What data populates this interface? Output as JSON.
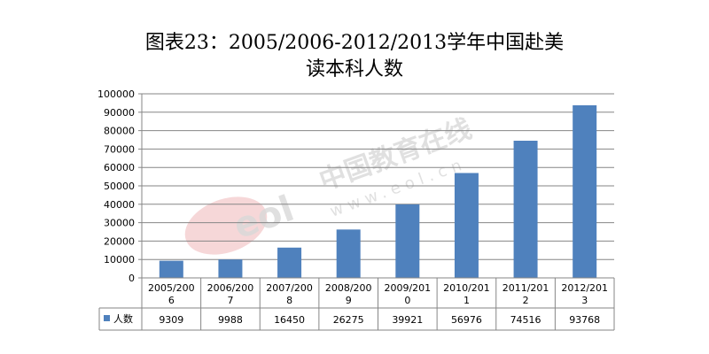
{
  "title_line1": "图表23：2005/2006-2012/2013学年中国赴美",
  "title_line2": "读本科人数",
  "watermark": {
    "cn": "中国教育在线",
    "url": "www.eol.cn",
    "logo": "eol"
  },
  "colors": {
    "bar": "#4f81bd",
    "grid": "#868686",
    "axis": "#868686",
    "wm_gray": "#d9d9d9",
    "wm_red": "#f2c6c8"
  },
  "chart_data": {
    "type": "bar",
    "title": "图表23：2005/2006-2012/2013学年中国赴美读本科人数",
    "categories": [
      [
        "2005/200",
        "6"
      ],
      [
        "2006/200",
        "7"
      ],
      [
        "2007/200",
        "8"
      ],
      [
        "2008/200",
        "9"
      ],
      [
        "2009/201",
        "0"
      ],
      [
        "2010/201",
        "1"
      ],
      [
        "2011/201",
        "2"
      ],
      [
        "2012/201",
        "3"
      ]
    ],
    "series": [
      {
        "name": "人数",
        "values": [
          9309,
          9988,
          16450,
          26275,
          39921,
          56976,
          74516,
          93768
        ]
      }
    ],
    "ylim": [
      0,
      100000
    ],
    "yticks": [
      0,
      10000,
      20000,
      30000,
      40000,
      50000,
      60000,
      70000,
      80000,
      90000,
      100000
    ],
    "grid": true,
    "legend": "data-table"
  }
}
